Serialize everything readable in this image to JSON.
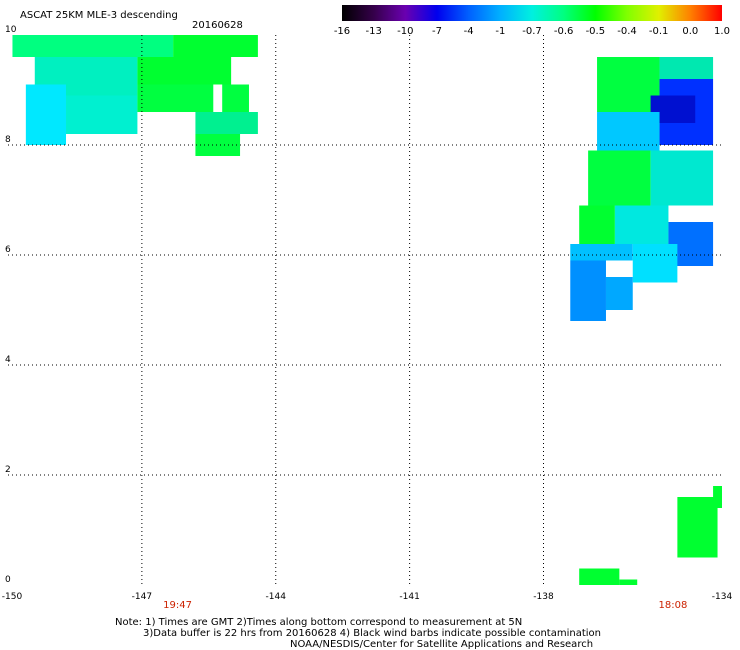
{
  "header": {
    "title": "ASCAT 25KM MLE-3 descending",
    "date": "20160628"
  },
  "colorbar": {
    "labels": [
      "-16",
      "-13",
      "-10",
      "-7",
      "-4",
      "-1",
      "-0.7",
      "-0.6",
      "-0.5",
      "-0.4",
      "-0.1",
      "0.0",
      "1.0"
    ],
    "colors": [
      "#000000",
      "#35004a",
      "#6a00b0",
      "#0000ee",
      "#0060ff",
      "#00b0ff",
      "#00f0e0",
      "#00ff80",
      "#00ff00",
      "#80ff00",
      "#e0f000",
      "#ff8000",
      "#ff0000"
    ]
  },
  "map": {
    "lon_range": [
      -150,
      -134
    ],
    "lat_range": [
      0,
      10
    ],
    "lat_labels": [
      "10",
      "8",
      "6",
      "4",
      "2",
      "0"
    ],
    "lon_labels": [
      "-150",
      "-147",
      "-144",
      "-141",
      "-138",
      "-134"
    ],
    "times": [
      {
        "text": "19:47",
        "lon": -146.2
      },
      {
        "text": "18:08",
        "lon": -135.1
      }
    ],
    "swaths": [
      {
        "lon0": -149.9,
        "lon1": -146.3,
        "lat0": 9.6,
        "lat1": 10.0,
        "color": "#00ff80"
      },
      {
        "lon0": -146.3,
        "lon1": -144.4,
        "lat0": 9.6,
        "lat1": 10.0,
        "color": "#00ff30"
      },
      {
        "lon0": -149.4,
        "lon1": -147.1,
        "lat0": 8.9,
        "lat1": 9.6,
        "color": "#00f0c0"
      },
      {
        "lon0": -147.1,
        "lon1": -145.0,
        "lat0": 9.1,
        "lat1": 9.6,
        "color": "#00ff30"
      },
      {
        "lon0": -149.6,
        "lon1": -148.7,
        "lat0": 8.0,
        "lat1": 9.1,
        "color": "#00e8ff"
      },
      {
        "lon0": -148.7,
        "lon1": -147.1,
        "lat0": 8.2,
        "lat1": 8.9,
        "color": "#00f0d0"
      },
      {
        "lon0": -147.1,
        "lon1": -145.4,
        "lat0": 8.6,
        "lat1": 9.1,
        "color": "#00ff40"
      },
      {
        "lon0": -145.2,
        "lon1": -144.6,
        "lat0": 8.6,
        "lat1": 9.1,
        "color": "#00ff40"
      },
      {
        "lon0": -145.8,
        "lon1": -144.4,
        "lat0": 8.2,
        "lat1": 8.6,
        "color": "#00f090"
      },
      {
        "lon0": -145.8,
        "lon1": -144.8,
        "lat0": 7.8,
        "lat1": 8.2,
        "color": "#00ff40"
      },
      {
        "lon0": -136.8,
        "lon1": -135.4,
        "lat0": 8.6,
        "lat1": 9.6,
        "color": "#00ff40"
      },
      {
        "lon0": -135.4,
        "lon1": -134.2,
        "lat0": 9.2,
        "lat1": 9.6,
        "color": "#00e8b0"
      },
      {
        "lon0": -135.4,
        "lon1": -134.2,
        "lat0": 8.0,
        "lat1": 9.2,
        "color": "#0030ff"
      },
      {
        "lon0": -135.6,
        "lon1": -134.6,
        "lat0": 8.4,
        "lat1": 8.9,
        "color": "#0010d0"
      },
      {
        "lon0": -136.8,
        "lon1": -135.4,
        "lat0": 7.9,
        "lat1": 8.6,
        "color": "#00c8ff"
      },
      {
        "lon0": -137.0,
        "lon1": -135.6,
        "lat0": 6.9,
        "lat1": 7.9,
        "color": "#00ff40"
      },
      {
        "lon0": -135.6,
        "lon1": -134.2,
        "lat0": 6.9,
        "lat1": 7.9,
        "color": "#00e8d0"
      },
      {
        "lon0": -137.2,
        "lon1": -136.4,
        "lat0": 6.2,
        "lat1": 6.9,
        "color": "#00ff30"
      },
      {
        "lon0": -136.4,
        "lon1": -135.2,
        "lat0": 6.2,
        "lat1": 6.9,
        "color": "#00e8e0"
      },
      {
        "lon0": -135.2,
        "lon1": -134.2,
        "lat0": 5.8,
        "lat1": 6.6,
        "color": "#0070ff"
      },
      {
        "lon0": -137.4,
        "lon1": -136.0,
        "lat0": 5.9,
        "lat1": 6.2,
        "color": "#00c0ff"
      },
      {
        "lon0": -136.0,
        "lon1": -135.0,
        "lat0": 5.5,
        "lat1": 6.2,
        "color": "#00e0ff"
      },
      {
        "lon0": -137.4,
        "lon1": -136.6,
        "lat0": 4.8,
        "lat1": 5.9,
        "color": "#0090ff"
      },
      {
        "lon0": -136.6,
        "lon1": -136.0,
        "lat0": 5.0,
        "lat1": 5.6,
        "color": "#00a8ff"
      },
      {
        "lon0": -134.2,
        "lon1": -134.0,
        "lat0": 1.4,
        "lat1": 1.8,
        "color": "#00ff30"
      },
      {
        "lon0": -135.0,
        "lon1": -134.1,
        "lat0": 0.5,
        "lat1": 1.6,
        "color": "#00ff30"
      },
      {
        "lon0": -137.2,
        "lon1": -136.3,
        "lat0": 0.0,
        "lat1": 0.3,
        "color": "#00ff30"
      },
      {
        "lon0": -136.3,
        "lon1": -135.9,
        "lat0": 0.0,
        "lat1": 0.1,
        "color": "#00ff30"
      }
    ]
  },
  "notes": {
    "line1": "Note: 1) Times are GMT 2)Times along bottom correspond to measurement at 5N",
    "line2": "3)Data buffer is 22 hrs from 20160628 4) Black wind barbs indicate possible contamination",
    "line3": "NOAA/NESDIS/Center for Satellite Applications and Research"
  }
}
